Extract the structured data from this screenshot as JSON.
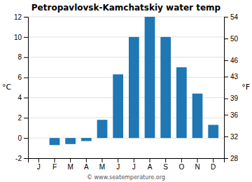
{
  "chart_data": {
    "type": "bar",
    "title": "Petropavlovsk-Kamchatskiy water temp",
    "categories": [
      "J",
      "F",
      "M",
      "A",
      "M",
      "J",
      "J",
      "A",
      "S",
      "O",
      "N",
      "D"
    ],
    "values": [
      0.0,
      -0.7,
      -0.6,
      -0.3,
      1.8,
      6.3,
      10.0,
      12.0,
      10.0,
      7.0,
      4.4,
      1.3
    ],
    "ylabel": "°C",
    "y2label": "°F",
    "ylim": [
      -2,
      12
    ],
    "yticks": [
      -2,
      0,
      2,
      4,
      6,
      8,
      10,
      12
    ],
    "y2lim": [
      28,
      54
    ],
    "y2ticks": [
      28,
      32,
      36,
      39,
      43,
      46,
      50,
      54
    ],
    "grid": true,
    "annotations": [
      "© www.seatemperature.org"
    ]
  }
}
